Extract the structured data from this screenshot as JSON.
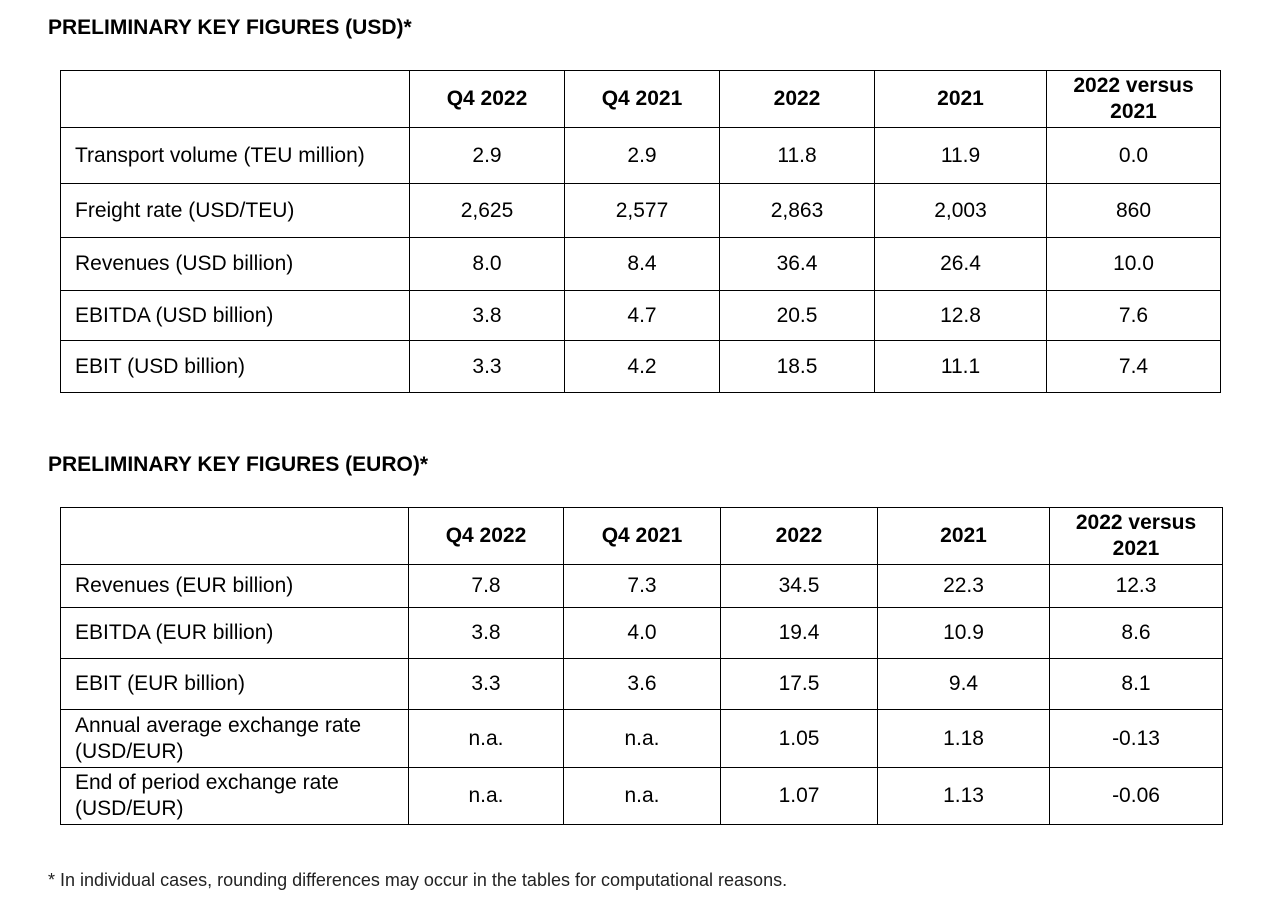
{
  "usd": {
    "title": "PRELIMINARY KEY FIGURES (USD)*",
    "headers": [
      "",
      "Q4 2022",
      "Q4 2021",
      "2022",
      "2021",
      "2022 versus 2021"
    ],
    "rows": [
      {
        "label": "Transport volume (TEU million)",
        "values": [
          "2.9",
          "2.9",
          "11.8",
          "11.9",
          "0.0"
        ]
      },
      {
        "label": "Freight rate (USD/TEU)",
        "values": [
          "2,625",
          "2,577",
          "2,863",
          "2,003",
          "860"
        ]
      },
      {
        "label": "Revenues (USD billion)",
        "values": [
          "8.0",
          "8.4",
          "36.4",
          "26.4",
          "10.0"
        ]
      },
      {
        "label": "EBITDA (USD billion)",
        "values": [
          "3.8",
          "4.7",
          "20.5",
          "12.8",
          "7.6"
        ]
      },
      {
        "label": "EBIT (USD billion)",
        "values": [
          "3.3",
          "4.2",
          "18.5",
          "11.1",
          "7.4"
        ]
      }
    ]
  },
  "eur": {
    "title": "PRELIMINARY KEY FIGURES (EURO)*",
    "headers": [
      "",
      "Q4 2022",
      "Q4 2021",
      "2022",
      "2021",
      "2022 versus 2021"
    ],
    "rows": [
      {
        "label": "Revenues (EUR billion)",
        "values": [
          "7.8",
          "7.3",
          "34.5",
          "22.3",
          "12.3"
        ]
      },
      {
        "label": "EBITDA (EUR billion)",
        "values": [
          "3.8",
          "4.0",
          "19.4",
          "10.9",
          "8.6"
        ]
      },
      {
        "label": "EBIT (EUR billion)",
        "values": [
          "3.3",
          "3.6",
          "17.5",
          "9.4",
          "8.1"
        ]
      },
      {
        "label": "Annual average exchange rate (USD/EUR)",
        "values": [
          "n.a.",
          "n.a.",
          "1.05",
          "1.18",
          "-0.13"
        ]
      },
      {
        "label": "End of period exchange rate (USD/EUR)",
        "values": [
          "n.a.",
          "n.a.",
          "1.07",
          "1.13",
          "-0.06"
        ]
      }
    ]
  },
  "footnote": "* In individual cases, rounding differences may occur in the tables for computational reasons."
}
